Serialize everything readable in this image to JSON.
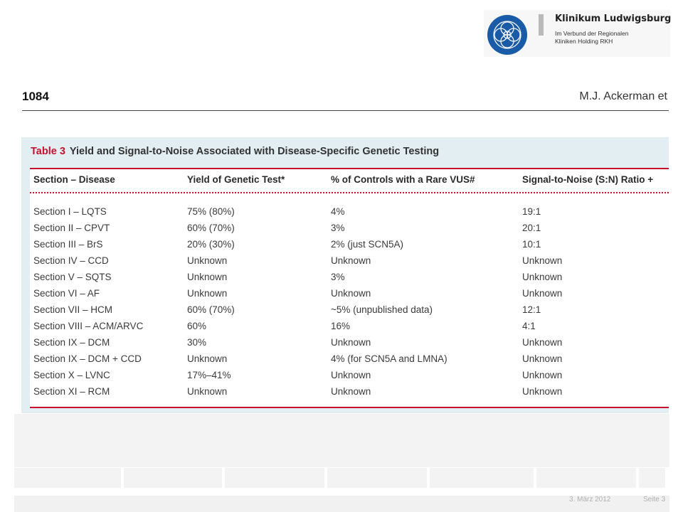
{
  "logo": {
    "title": "Klinikum Ludwigsburg",
    "subtitle_line1": "Im Verbund der Regionalen",
    "subtitle_line2": "Kliniken Holding RKH",
    "colors": {
      "mark": "#1a5ba8",
      "bar": "#b9b9b9"
    }
  },
  "article": {
    "page_number": "1084",
    "authors": "M.J. Ackerman et"
  },
  "table": {
    "label": "Table 3",
    "caption": "Yield and Signal-to-Noise Associated with Disease-Specific Genetic Testing",
    "headers": [
      "Section – Disease",
      "Yield of Genetic Test*",
      "% of Controls with a Rare VUS#",
      "Signal-to-Noise (S:N) Ratio +"
    ],
    "rows": [
      [
        "Section I – LQTS",
        "75% (80%)",
        "4%",
        "19:1"
      ],
      [
        "Section II – CPVT",
        "60% (70%)",
        "3%",
        "20:1"
      ],
      [
        "Section III – BrS",
        "20% (30%)",
        "2% (just SCN5A)",
        "10:1"
      ],
      [
        "Section IV – CCD",
        "Unknown",
        "Unknown",
        "Unknown"
      ],
      [
        "Section V – SQTS",
        "Unknown",
        "3%",
        "Unknown"
      ],
      [
        "Section VI – AF",
        "Unknown",
        "Unknown",
        "Unknown"
      ],
      [
        "Section VII – HCM",
        "60% (70%)",
        "~5% (unpublished data)",
        "12:1"
      ],
      [
        "Section VIII – ACM/ARVC",
        "60%",
        "16%",
        "4:1"
      ],
      [
        "Section IX – DCM",
        "30%",
        "Unknown",
        "Unknown"
      ],
      [
        "Section IX – DCM + CCD",
        "Unknown",
        "4% (for SCN5A and LMNA)",
        "Unknown"
      ],
      [
        "Section X – LVNC",
        "17%–41%",
        "Unknown",
        "Unknown"
      ],
      [
        "Section XI – RCM",
        "Unknown",
        "Unknown",
        "Unknown"
      ]
    ],
    "colors": {
      "accent": "#c8102e",
      "panel": "#e2eef2"
    }
  },
  "footer": {
    "date": "3. März 2012",
    "page": "Seite 3"
  }
}
